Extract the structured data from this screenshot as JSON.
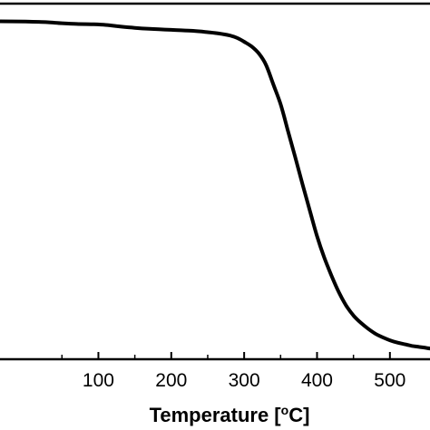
{
  "chart_data": {
    "type": "line",
    "title": "",
    "xlabel": "Temperature [",
    "xlabel_superscript": "o",
    "xlabel_unit": "C]",
    "ylabel": "",
    "xlim": [
      -35,
      555
    ],
    "ylim": [
      0,
      100
    ],
    "x_ticks": [
      100,
      200,
      300,
      400,
      500
    ],
    "x_tick_labels": [
      "100",
      "200",
      "300",
      "400",
      "500"
    ],
    "x_minor_ticks": [
      50,
      150,
      250,
      350,
      450
    ],
    "grid": false,
    "legend": "none",
    "line_color": "#000000",
    "series": [
      {
        "x": [
          -35,
          0,
          30,
          50,
          70,
          90,
          110,
          130,
          150,
          170,
          200,
          230,
          250,
          265,
          280,
          290,
          300,
          310,
          320,
          330,
          340,
          350,
          360,
          370,
          380,
          390,
          400,
          410,
          420,
          430,
          440,
          450,
          460,
          470,
          480,
          490,
          500,
          510,
          520,
          530,
          540,
          555
        ],
        "y": [
          99.6,
          99.5,
          99.3,
          99.0,
          98.8,
          98.7,
          98.5,
          98.0,
          97.6,
          97.3,
          97.0,
          96.7,
          96.3,
          95.9,
          95.3,
          94.6,
          93.4,
          92.0,
          89.9,
          86.4,
          80.5,
          74.5,
          66.5,
          58.5,
          50.3,
          42.4,
          34.5,
          28.0,
          22.5,
          17.5,
          13.5,
          10.5,
          8.3,
          6.5,
          5.0,
          3.9,
          3.0,
          2.3,
          1.8,
          1.3,
          1.0,
          0.5
        ]
      }
    ]
  }
}
